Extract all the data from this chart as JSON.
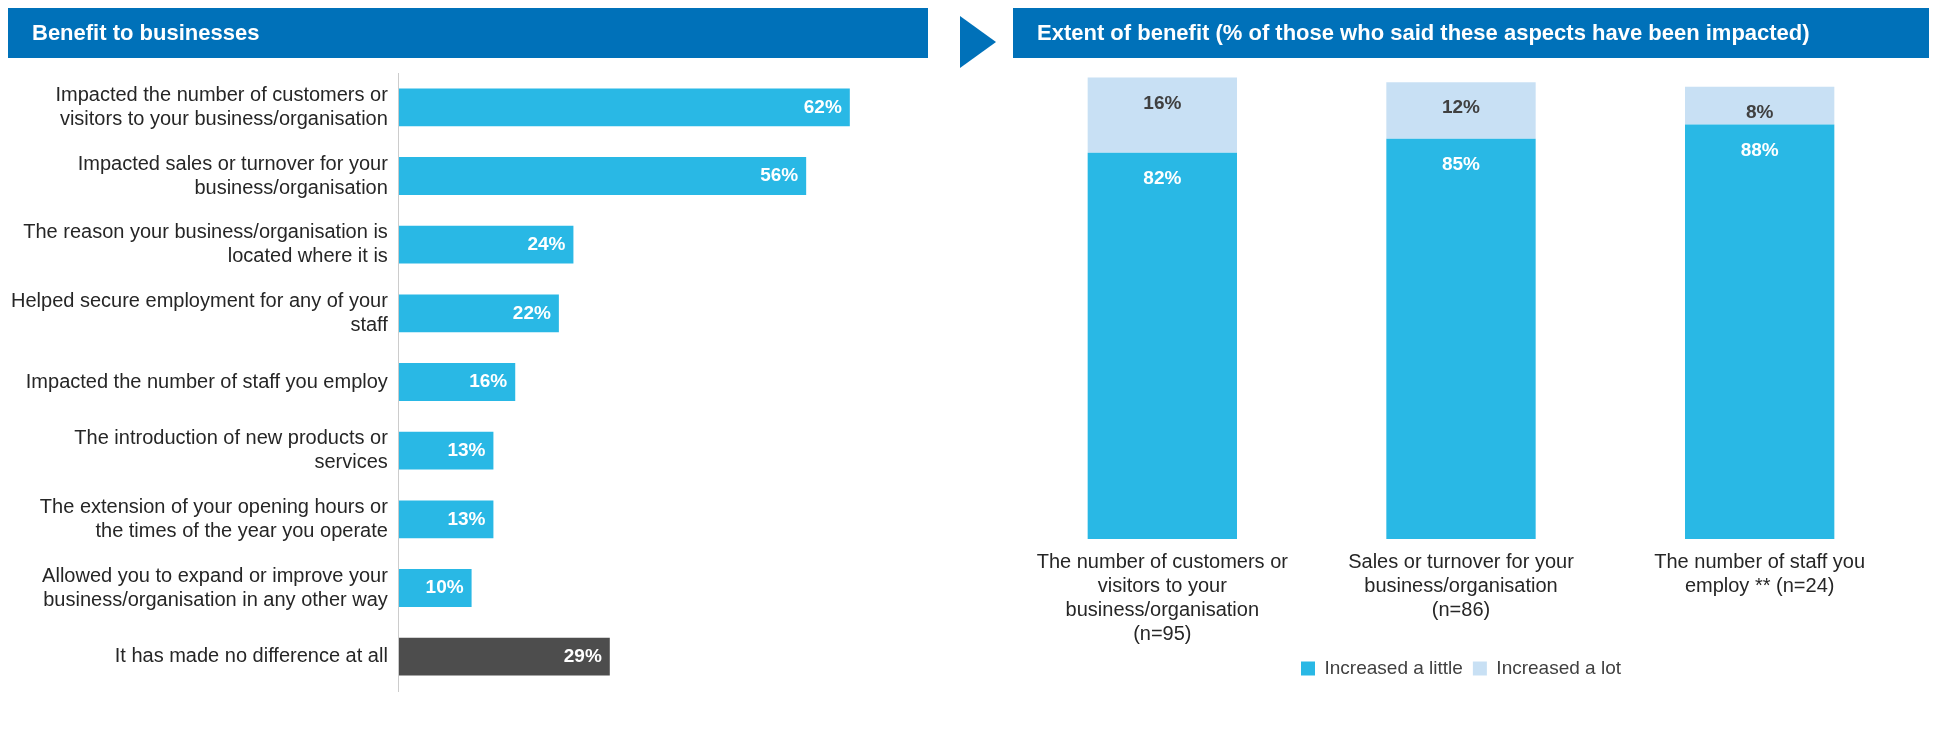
{
  "chart_data": [
    {
      "type": "bar",
      "orientation": "horizontal",
      "title": "Benefit to businesses",
      "categories": [
        "Impacted the number of customers or visitors to your business/organisation",
        "Impacted sales or turnover for your business/organisation",
        "The reason your business/organisation is located where it is",
        "Helped secure employment for any of your staff",
        "Impacted the number of staff you employ",
        "The introduction of new products or services",
        "The extension of your opening hours or the times of the year you operate",
        "Allowed you to expand or improve your business/organisation in any other way",
        "It has made no difference at all"
      ],
      "values": [
        62,
        56,
        24,
        22,
        16,
        13,
        13,
        10,
        29
      ],
      "value_labels": [
        "62%",
        "56%",
        "24%",
        "22%",
        "16%",
        "13%",
        "13%",
        "10%",
        "29%"
      ],
      "colors": [
        "#29b8e5",
        "#29b8e5",
        "#29b8e5",
        "#29b8e5",
        "#29b8e5",
        "#29b8e5",
        "#29b8e5",
        "#29b8e5",
        "#4d4d4d"
      ]
    },
    {
      "type": "bar",
      "stacked": true,
      "title": "Extent of benefit (% of those who said these aspects have been impacted)",
      "categories": [
        "The number of customers or visitors to your business/organisation (n=95)",
        "Sales or turnover for your business/organisation (n=86)",
        "The number of staff you employ ** (n=24)"
      ],
      "series": [
        {
          "name": "Increased a little",
          "color": "#29b8e5",
          "values": [
            82,
            85,
            88
          ],
          "value_labels": [
            "82%",
            "85%",
            "88%"
          ]
        },
        {
          "name": "Increased a lot",
          "color": "#c8e0f4",
          "values": [
            16,
            12,
            8
          ],
          "value_labels": [
            "16%",
            "12%",
            "8%"
          ]
        }
      ],
      "legend": "bottom"
    }
  ]
}
